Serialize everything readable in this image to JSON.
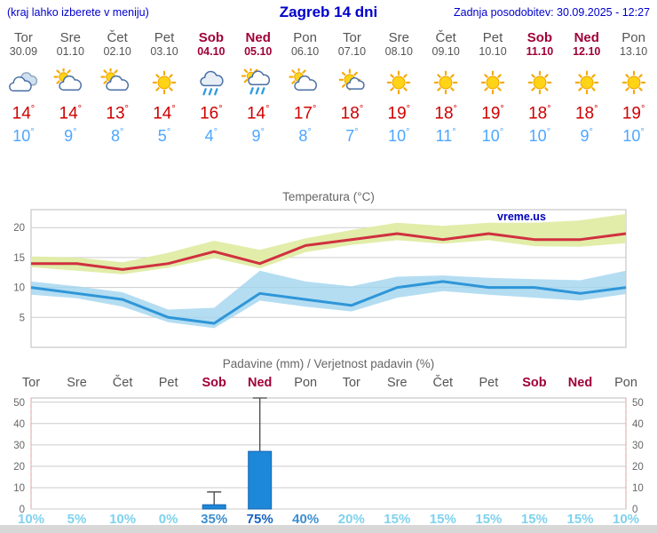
{
  "header": {
    "left_note": "(kraj lahko izberete v meniju)",
    "title": "Zagreb 14 dni",
    "last_update": "Zadnja posodobitev: 30.09.2025 - 12:27"
  },
  "units": {
    "degree": "°",
    "percent": "%"
  },
  "colors": {
    "link_blue": "#0000cc",
    "weekday_text": "#555555",
    "weekend_text": "#a00038",
    "temp_high": "#d00000",
    "temp_low": "#4da6ff",
    "chart_title": "#666666",
    "grid": "#cccccc",
    "max_band": "#dfeca4",
    "max_line": "#d03040",
    "min_band": "#9fd3ee",
    "min_line": "#2e96d8",
    "bar_fill": "#1e88d8",
    "bar_stroke": "#1565b0",
    "whisker": "#444444",
    "edge_dash": "#f09898",
    "pct_low": "#7fd2ee",
    "pct_mid": "#3e8fd0",
    "pct_high": "#1763c2",
    "watermark": "#0000bb",
    "footer_strip": "#d8d8d8"
  },
  "days": [
    {
      "name": "Tor",
      "date": "30.09",
      "weekend": false,
      "icon": "cloudy",
      "high": 14,
      "low": 10
    },
    {
      "name": "Sre",
      "date": "01.10",
      "weekend": false,
      "icon": "sun-cloud",
      "high": 14,
      "low": 9
    },
    {
      "name": "Čet",
      "date": "02.10",
      "weekend": false,
      "icon": "sun-cloud",
      "high": 13,
      "low": 8
    },
    {
      "name": "Pet",
      "date": "03.10",
      "weekend": false,
      "icon": "sunny",
      "high": 14,
      "low": 5
    },
    {
      "name": "Sob",
      "date": "04.10",
      "weekend": true,
      "icon": "rain",
      "high": 16,
      "low": 4
    },
    {
      "name": "Ned",
      "date": "05.10",
      "weekend": true,
      "icon": "sun-rain",
      "high": 14,
      "low": 9
    },
    {
      "name": "Pon",
      "date": "06.10",
      "weekend": false,
      "icon": "sun-cloud",
      "high": 17,
      "low": 8
    },
    {
      "name": "Tor",
      "date": "07.10",
      "weekend": false,
      "icon": "mostly-sunny",
      "high": 18,
      "low": 7
    },
    {
      "name": "Sre",
      "date": "08.10",
      "weekend": false,
      "icon": "sunny",
      "high": 19,
      "low": 10
    },
    {
      "name": "Čet",
      "date": "09.10",
      "weekend": false,
      "icon": "sunny",
      "high": 18,
      "low": 11
    },
    {
      "name": "Pet",
      "date": "10.10",
      "weekend": false,
      "icon": "sunny",
      "high": 19,
      "low": 10
    },
    {
      "name": "Sob",
      "date": "11.10",
      "weekend": true,
      "icon": "sunny",
      "high": 18,
      "low": 10
    },
    {
      "name": "Ned",
      "date": "12.10",
      "weekend": true,
      "icon": "sunny",
      "high": 18,
      "low": 9
    },
    {
      "name": "Pon",
      "date": "13.10",
      "weekend": false,
      "icon": "sunny",
      "high": 19,
      "low": 10
    }
  ],
  "chart_data": [
    {
      "type": "line",
      "title": "Temperatura (°C)",
      "watermark": "vreme.us",
      "categories": [
        "Tor",
        "Sre",
        "Čet",
        "Pet",
        "Sob",
        "Ned",
        "Pon",
        "Tor",
        "Sre",
        "Čet",
        "Pet",
        "Sob",
        "Ned",
        "Pon"
      ],
      "ylim": [
        0,
        23
      ],
      "yticks": [
        5,
        10,
        15,
        20
      ],
      "grid": true,
      "series": [
        {
          "name": "max",
          "values": [
            14,
            14,
            13,
            14,
            16,
            14,
            17,
            18,
            19,
            18,
            19,
            18,
            18,
            19
          ]
        },
        {
          "name": "max_range_upper",
          "values": [
            15.2,
            15,
            14.2,
            15.8,
            17.8,
            16.3,
            18.2,
            19.6,
            20.8,
            20.3,
            20.8,
            20.8,
            21.2,
            22.3
          ]
        },
        {
          "name": "max_range_lower",
          "values": [
            13.4,
            12.8,
            12.2,
            13.3,
            14.9,
            13.2,
            15.9,
            17.1,
            17.9,
            17.3,
            17.9,
            16.9,
            16.8,
            17.4
          ]
        },
        {
          "name": "min",
          "values": [
            10,
            9,
            8,
            5,
            4,
            9,
            8,
            7,
            10,
            11,
            10,
            10,
            9,
            10
          ]
        },
        {
          "name": "min_range_upper",
          "values": [
            11,
            10.2,
            9.2,
            6.3,
            6.6,
            12.8,
            11,
            10.2,
            11.8,
            12,
            11.6,
            11.4,
            11.2,
            12.8
          ]
        },
        {
          "name": "min_range_lower",
          "values": [
            8.8,
            8.2,
            6.8,
            4.2,
            3.2,
            7.8,
            6.8,
            6,
            8.3,
            9.4,
            8.8,
            8.3,
            7.8,
            8.9
          ]
        }
      ]
    },
    {
      "type": "bar",
      "title": "Padavine (mm) / Verjetnost padavin (%)",
      "categories": [
        "Tor",
        "Sre",
        "Čet",
        "Pet",
        "Sob",
        "Ned",
        "Pon",
        "Tor",
        "Sre",
        "Čet",
        "Pet",
        "Sob",
        "Ned",
        "Pon"
      ],
      "weekend": [
        false,
        false,
        false,
        false,
        true,
        true,
        false,
        false,
        false,
        false,
        false,
        true,
        true,
        false
      ],
      "values_mm": [
        0,
        0,
        0,
        0,
        2,
        27,
        0,
        0,
        0,
        0,
        0,
        0,
        0,
        0
      ],
      "range_max_mm": [
        0,
        0,
        0,
        0,
        8,
        52,
        0,
        0,
        0,
        0,
        0,
        0,
        0,
        0
      ],
      "probability_pct": [
        10,
        5,
        10,
        0,
        35,
        75,
        40,
        20,
        15,
        15,
        15,
        15,
        15,
        10
      ],
      "ylim": [
        0,
        52
      ],
      "yticks": [
        0,
        10,
        20,
        30,
        40,
        50
      ]
    }
  ]
}
